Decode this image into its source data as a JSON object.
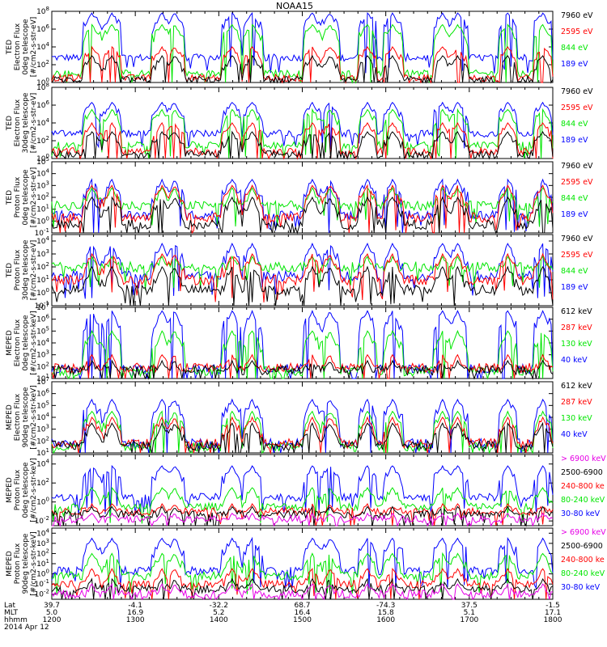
{
  "title": "NOAA15",
  "colors": {
    "blue": "#0000ff",
    "red": "#ff0000",
    "green": "#00e600",
    "black": "#000000",
    "magenta": "#e600e6"
  },
  "footer": {
    "row_labels": [
      "Lat",
      "MLT",
      "hhmm"
    ],
    "columns": [
      {
        "lat": "39.7",
        "mlt": "5.0",
        "hhmm": "1200"
      },
      {
        "lat": "-4.1",
        "mlt": "16.9",
        "hhmm": "1300"
      },
      {
        "lat": "-32.2",
        "mlt": "5.2",
        "hhmm": "1400"
      },
      {
        "lat": "68.7",
        "mlt": "16.4",
        "hhmm": "1500"
      },
      {
        "lat": "-74.3",
        "mlt": "15.8",
        "hhmm": "1600"
      },
      {
        "lat": "37.5",
        "mlt": "5.1",
        "hhmm": "1700"
      },
      {
        "lat": "-1.5",
        "mlt": "17.1",
        "hhmm": "1800"
      }
    ],
    "date": "2014 Apr 12"
  },
  "chart_data": [
    {
      "type": "line",
      "ylabel": [
        "TED",
        "Electron Flux",
        "0deg telescope",
        "[#/cm2-s-str-eV]"
      ],
      "yticks": [
        "10^0",
        "10^2",
        "10^4",
        "10^6",
        "10^8"
      ],
      "ylim_log": [
        0,
        8
      ],
      "x": [
        "1200",
        "1300",
        "1400",
        "1500",
        "1600",
        "1700",
        "1800"
      ],
      "legend": [
        {
          "name": "7960 eV",
          "color": "black"
        },
        {
          "name": "2595 eV",
          "color": "red"
        },
        {
          "name": "844 eV",
          "color": "green"
        },
        {
          "name": "189 eV",
          "color": "blue"
        }
      ],
      "series": [
        {
          "name": "189 eV",
          "color": "blue",
          "baseline": 2.8,
          "peak": 7.8
        },
        {
          "name": "844 eV",
          "color": "green",
          "baseline": 1.0,
          "peak": 6.5
        },
        {
          "name": "2595 eV",
          "color": "red",
          "baseline": 0.5,
          "peak": 4.0
        },
        {
          "name": "7960 eV",
          "color": "black",
          "baseline": 0.3,
          "peak": 3.0
        }
      ]
    },
    {
      "type": "line",
      "ylabel": [
        "TED",
        "Electron Flux",
        "30deg telescope",
        "[#/cm2-s-str-eV]"
      ],
      "yticks": [
        "10^0",
        "10^2",
        "10^4",
        "10^6",
        "10^8"
      ],
      "ylim_log": [
        0,
        8
      ],
      "x": [
        "1200",
        "1300",
        "1400",
        "1500",
        "1600",
        "1700",
        "1800"
      ],
      "legend": [
        {
          "name": "7960 eV",
          "color": "black"
        },
        {
          "name": "2595 eV",
          "color": "red"
        },
        {
          "name": "844 eV",
          "color": "green"
        },
        {
          "name": "189 eV",
          "color": "blue"
        }
      ],
      "series": [
        {
          "name": "189 eV",
          "color": "blue",
          "baseline": 2.8,
          "peak": 6.3
        },
        {
          "name": "844 eV",
          "color": "green",
          "baseline": 1.5,
          "peak": 5.5
        },
        {
          "name": "2595 eV",
          "color": "red",
          "baseline": 0.8,
          "peak": 4.0
        },
        {
          "name": "7960 eV",
          "color": "black",
          "baseline": 0.5,
          "peak": 3.0
        }
      ]
    },
    {
      "type": "line",
      "ylabel": [
        "TED",
        "Proton Flux",
        "0deg telescope",
        "[#/cm2-s-str-eV]"
      ],
      "yticks": [
        "10^-1",
        "10^0",
        "10^1",
        "10^2",
        "10^3",
        "10^4",
        "10^5"
      ],
      "ylim_log": [
        -1,
        5
      ],
      "x": [
        "1200",
        "1300",
        "1400",
        "1500",
        "1600",
        "1700",
        "1800"
      ],
      "legend": [
        {
          "name": "7960 eV",
          "color": "black"
        },
        {
          "name": "2595 eV",
          "color": "red"
        },
        {
          "name": "844 eV",
          "color": "green"
        },
        {
          "name": "189 eV",
          "color": "blue"
        }
      ],
      "series": [
        {
          "name": "189 eV",
          "color": "blue",
          "baseline": 0.5,
          "peak": 3.5
        },
        {
          "name": "844 eV",
          "color": "green",
          "baseline": 1.3,
          "peak": 2.8
        },
        {
          "name": "2595 eV",
          "color": "red",
          "baseline": 0.3,
          "peak": 3.0
        },
        {
          "name": "7960 eV",
          "color": "black",
          "baseline": -0.3,
          "peak": 2.0
        }
      ]
    },
    {
      "type": "line",
      "ylabel": [
        "TED",
        "Proton Flux",
        "30deg telescope",
        "[#/cm2-s-str-eV]"
      ],
      "yticks": [
        "10^-1",
        "10^0",
        "10^1",
        "10^2",
        "10^3",
        "10^4"
      ],
      "ylim_log": [
        -1,
        4.5
      ],
      "x": [
        "1200",
        "1300",
        "1400",
        "1500",
        "1600",
        "1700",
        "1800"
      ],
      "legend": [
        {
          "name": "7960 eV",
          "color": "black"
        },
        {
          "name": "2595 eV",
          "color": "red"
        },
        {
          "name": "844 eV",
          "color": "green"
        },
        {
          "name": "189 eV",
          "color": "blue"
        }
      ],
      "series": [
        {
          "name": "189 eV",
          "color": "blue",
          "baseline": 1.3,
          "peak": 3.8
        },
        {
          "name": "844 eV",
          "color": "green",
          "baseline": 2.0,
          "peak": 2.8
        },
        {
          "name": "2595 eV",
          "color": "red",
          "baseline": 1.0,
          "peak": 3.0
        },
        {
          "name": "7960 eV",
          "color": "black",
          "baseline": 0.2,
          "peak": 2.0
        }
      ]
    },
    {
      "type": "line",
      "ylabel": [
        "MEPED",
        "Electron Flux",
        "0deg telescope",
        "[#/cm2-s-str-keV]"
      ],
      "yticks": [
        "10^1",
        "10^2",
        "10^3",
        "10^4",
        "10^5",
        "10^6",
        "10^7"
      ],
      "ylim_log": [
        1,
        7
      ],
      "x": [
        "1200",
        "1300",
        "1400",
        "1500",
        "1600",
        "1700",
        "1800"
      ],
      "legend": [
        {
          "name": "612 keV",
          "color": "black"
        },
        {
          "name": "287 keV",
          "color": "red"
        },
        {
          "name": "130 keV",
          "color": "green"
        },
        {
          "name": "40 keV",
          "color": "blue"
        }
      ],
      "series": [
        {
          "name": "40 keV",
          "color": "blue",
          "baseline": 1.8,
          "peak": 6.7
        },
        {
          "name": "130 keV",
          "color": "green",
          "baseline": 1.6,
          "peak": 5.0
        },
        {
          "name": "287 keV",
          "color": "red",
          "baseline": 1.9,
          "peak": 3.0
        },
        {
          "name": "612 keV",
          "color": "black",
          "baseline": 1.7,
          "peak": 2.5
        }
      ]
    },
    {
      "type": "line",
      "ylabel": [
        "MEPED",
        "Electron Flux",
        "90deg telescope",
        "[#/cm2-s-str-keV]"
      ],
      "yticks": [
        "10^1",
        "10^2",
        "10^3",
        "10^4",
        "10^5",
        "10^6",
        "10^7"
      ],
      "ylim_log": [
        1,
        7
      ],
      "x": [
        "1200",
        "1300",
        "1400",
        "1500",
        "1600",
        "1700",
        "1800"
      ],
      "legend": [
        {
          "name": "612 keV",
          "color": "black"
        },
        {
          "name": "287 keV",
          "color": "red"
        },
        {
          "name": "130 keV",
          "color": "green"
        },
        {
          "name": "40 keV",
          "color": "blue"
        }
      ],
      "series": [
        {
          "name": "40 keV",
          "color": "blue",
          "baseline": 1.8,
          "peak": 5.5
        },
        {
          "name": "130 keV",
          "color": "green",
          "baseline": 1.5,
          "peak": 4.5
        },
        {
          "name": "287 keV",
          "color": "red",
          "baseline": 1.8,
          "peak": 4.0
        },
        {
          "name": "612 keV",
          "color": "black",
          "baseline": 1.6,
          "peak": 3.5
        }
      ]
    },
    {
      "type": "line",
      "ylabel": [
        "MEPED",
        "Proton Flux",
        "0deg telescope",
        "[#/cm2-s-str-keV]"
      ],
      "yticks": [
        "10^-2",
        "10^0",
        "10^2",
        "10^4"
      ],
      "ylim_log": [
        -2.5,
        5
      ],
      "x": [
        "1200",
        "1300",
        "1400",
        "1500",
        "1600",
        "1700",
        "1800"
      ],
      "legend": [
        {
          "name": "> 6900 keV",
          "color": "magenta"
        },
        {
          "name": "2500-6900",
          "color": "black"
        },
        {
          "name": "240-800 ke",
          "color": "red"
        },
        {
          "name": "80-240 keV",
          "color": "green"
        },
        {
          "name": "30-80 keV",
          "color": "blue"
        }
      ],
      "series": [
        {
          "name": "30-80 keV",
          "color": "blue",
          "baseline": 0.5,
          "peak": 3.8
        },
        {
          "name": "80-240 keV",
          "color": "green",
          "baseline": -0.5,
          "peak": 1.5
        },
        {
          "name": "240-800 ke",
          "color": "red",
          "baseline": -1.0,
          "peak": -0.2
        },
        {
          "name": "2500-6900",
          "color": "black",
          "baseline": -1.3,
          "peak": -0.5
        },
        {
          "name": "> 6900 keV",
          "color": "magenta",
          "baseline": -1.8,
          "peak": -1.2
        }
      ]
    },
    {
      "type": "line",
      "ylabel": [
        "MEPED",
        "Proton Flux",
        "90deg telescope",
        "[#/cm2-s-str-keV]"
      ],
      "yticks": [
        "10^-2",
        "10^-1",
        "10^0",
        "10^1",
        "10^2",
        "10^3",
        "10^4"
      ],
      "ylim_log": [
        -2.5,
        4.5
      ],
      "x": [
        "1200",
        "1300",
        "1400",
        "1500",
        "1600",
        "1700",
        "1800"
      ],
      "legend": [
        {
          "name": "> 6900 keV",
          "color": "magenta"
        },
        {
          "name": "2500-6900",
          "color": "black"
        },
        {
          "name": "240-800 ke",
          "color": "red"
        },
        {
          "name": "80-240 keV",
          "color": "green"
        },
        {
          "name": "30-80 keV",
          "color": "blue"
        }
      ],
      "series": [
        {
          "name": "30-80 keV",
          "color": "blue",
          "baseline": 0.3,
          "peak": 3.5
        },
        {
          "name": "80-240 keV",
          "color": "green",
          "baseline": -0.2,
          "peak": 2.0
        },
        {
          "name": "240-800 ke",
          "color": "red",
          "baseline": -1.0,
          "peak": 0.5
        },
        {
          "name": "2500-6900",
          "color": "black",
          "baseline": -1.5,
          "peak": -0.5
        },
        {
          "name": "> 6900 keV",
          "color": "magenta",
          "baseline": -2.0,
          "peak": -1.0
        }
      ]
    }
  ]
}
